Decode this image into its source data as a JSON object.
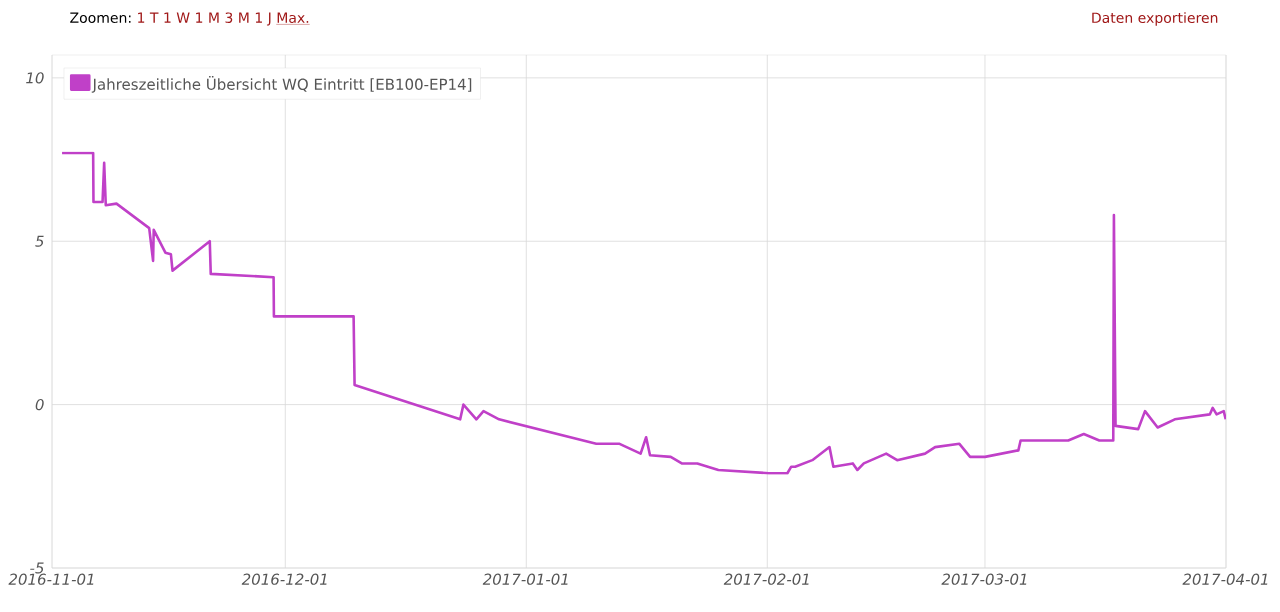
{
  "chart_data": {
    "type": "line",
    "annotations": [
      "Zoomen:",
      "1 T",
      "1 W",
      "1 M",
      "3 M",
      "1 J",
      "Max.",
      "Daten exportieren"
    ],
    "x": [
      "2016-11-02T07:00",
      "2016-11-06T07:00",
      "2016-11-06T08:00",
      "2016-11-07T12:00",
      "2016-11-07T17:00",
      "2016-11-07T22:00",
      "2016-11-09T07:00",
      "2016-11-13T12:00",
      "2016-11-14T00:00",
      "2016-11-14T02:00",
      "2016-11-15T14:00",
      "2016-11-16T07:00",
      "2016-11-16T12:00",
      "2016-11-21T07:00",
      "2016-11-21T10:00",
      "2016-11-29T12:00",
      "2016-11-29T13:00",
      "2016-12-09T19:00",
      "2016-12-09T22:00",
      "2016-12-23T12:00",
      "2016-12-23T22:00",
      "2016-12-25T14:00",
      "2016-12-26T12:00",
      "2016-12-28T12:00",
      "2017-01-10T00:00",
      "2017-01-13T00:00",
      "2017-01-15T17:00",
      "2017-01-16T10:00",
      "2017-01-16T22:00",
      "2017-01-19T14:00",
      "2017-01-21T00:00",
      "2017-01-23T00:00",
      "2017-01-25T17:00",
      "2017-02-01T05:00",
      "2017-02-03T14:00",
      "2017-02-04T02:00",
      "2017-02-04T14:00",
      "2017-02-06T19:00",
      "2017-02-09T00:00",
      "2017-02-09T12:00",
      "2017-02-12T00:00",
      "2017-02-12T14:00",
      "2017-02-13T10:00",
      "2017-02-16T07:00",
      "2017-02-17T17:00",
      "2017-02-21T07:00",
      "2017-02-22T14:00",
      "2017-02-25T17:00",
      "2017-02-27T02:00",
      "2017-03-01T00:00",
      "2017-03-05T07:00",
      "2017-03-05T14:00",
      "2017-03-11T17:00",
      "2017-03-13T17:00",
      "2017-03-15T17:00",
      "2017-03-17T12:00",
      "2017-03-17T14:00",
      "2017-03-17T19:00",
      "2017-03-20T17:00",
      "2017-03-21T14:00",
      "2017-03-23T05:00",
      "2017-03-25T10:00",
      "2017-03-29T22:00",
      "2017-03-30T07:00",
      "2017-03-30T19:00",
      "2017-03-31T17:00",
      "2017-03-31T23:00"
    ],
    "series": [
      {
        "name": "Jahreszeitliche Übersicht WQ Eintritt [EB100-EP14]",
        "color": "#c040c8",
        "values": [
          7.7,
          7.7,
          6.2,
          6.2,
          7.4,
          6.1,
          6.15,
          5.4,
          4.4,
          5.35,
          4.65,
          4.6,
          4.1,
          5.0,
          4.0,
          3.9,
          2.7,
          2.7,
          0.6,
          -0.45,
          0.0,
          -0.45,
          -0.2,
          -0.45,
          -1.2,
          -1.2,
          -1.5,
          -1.0,
          -1.55,
          -1.6,
          -1.8,
          -1.8,
          -2.0,
          -2.1,
          -2.1,
          -1.9,
          -1.9,
          -1.7,
          -1.3,
          -1.9,
          -1.8,
          -2.0,
          -1.8,
          -1.5,
          -1.7,
          -1.5,
          -1.3,
          -1.2,
          -1.6,
          -1.6,
          -1.4,
          -1.1,
          -1.1,
          -0.9,
          -1.1,
          -1.1,
          5.8,
          -0.65,
          -0.75,
          -0.2,
          -0.7,
          -0.45,
          -0.3,
          -0.1,
          -0.3,
          -0.2,
          -0.45
        ]
      }
    ],
    "xlim": [
      "2016-11-01",
      "2017-04-01"
    ],
    "xticks": [
      "2016-11-01",
      "2016-12-01",
      "2017-01-01",
      "2017-02-01",
      "2017-03-01",
      "2017-04-01"
    ],
    "ylim": [
      -5,
      10.7
    ],
    "yticks": [
      -5,
      0,
      5,
      10
    ],
    "grid": true,
    "legend": "top left"
  }
}
